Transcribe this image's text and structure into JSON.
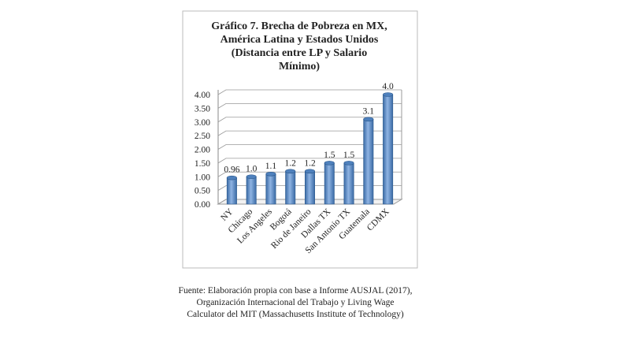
{
  "chart_data": {
    "type": "bar",
    "title": [
      "Gráfico 7. Brecha de Pobreza en MX,",
      "América Latina y Estados Unidos",
      "(Distancia entre LP y Salario",
      "Mínimo)"
    ],
    "categories": [
      "NY",
      "Chicago",
      "Los Angeles",
      "Bogotá",
      "Rio de Janeiro",
      "Dallas TX",
      "San Antonio TX",
      "Guatemala",
      "CDMX"
    ],
    "values": [
      0.96,
      1.0,
      1.1,
      1.2,
      1.2,
      1.5,
      1.5,
      3.1,
      4.0
    ],
    "value_labels": [
      "0.96",
      "1.0",
      "1.1",
      "1.2",
      "1.2",
      "1.5",
      "1.5",
      "3.1",
      "4.0"
    ],
    "color": "#4f81bd",
    "ylim": [
      0,
      4
    ],
    "yticks": [
      {
        "value": 0,
        "label": "0.00"
      },
      {
        "value": 0.5,
        "label": "0.50"
      },
      {
        "value": 1,
        "label": "1.00"
      },
      {
        "value": 1.5,
        "label": "1.50"
      },
      {
        "value": 2,
        "label": "2.00"
      },
      {
        "value": 2.5,
        "label": "2.50"
      },
      {
        "value": 3,
        "label": "3.00"
      },
      {
        "value": 3.5,
        "label": "3.50"
      },
      {
        "value": 4,
        "label": "4.00"
      }
    ],
    "grid": true,
    "source": [
      "Fuente: Elaboración propia con base a Informe AUSJAL (2017),",
      "Organización Internacional del Trabajo y Living Wage",
      "Calculator del MIT (Massachusetts Institute of Technology)"
    ]
  }
}
